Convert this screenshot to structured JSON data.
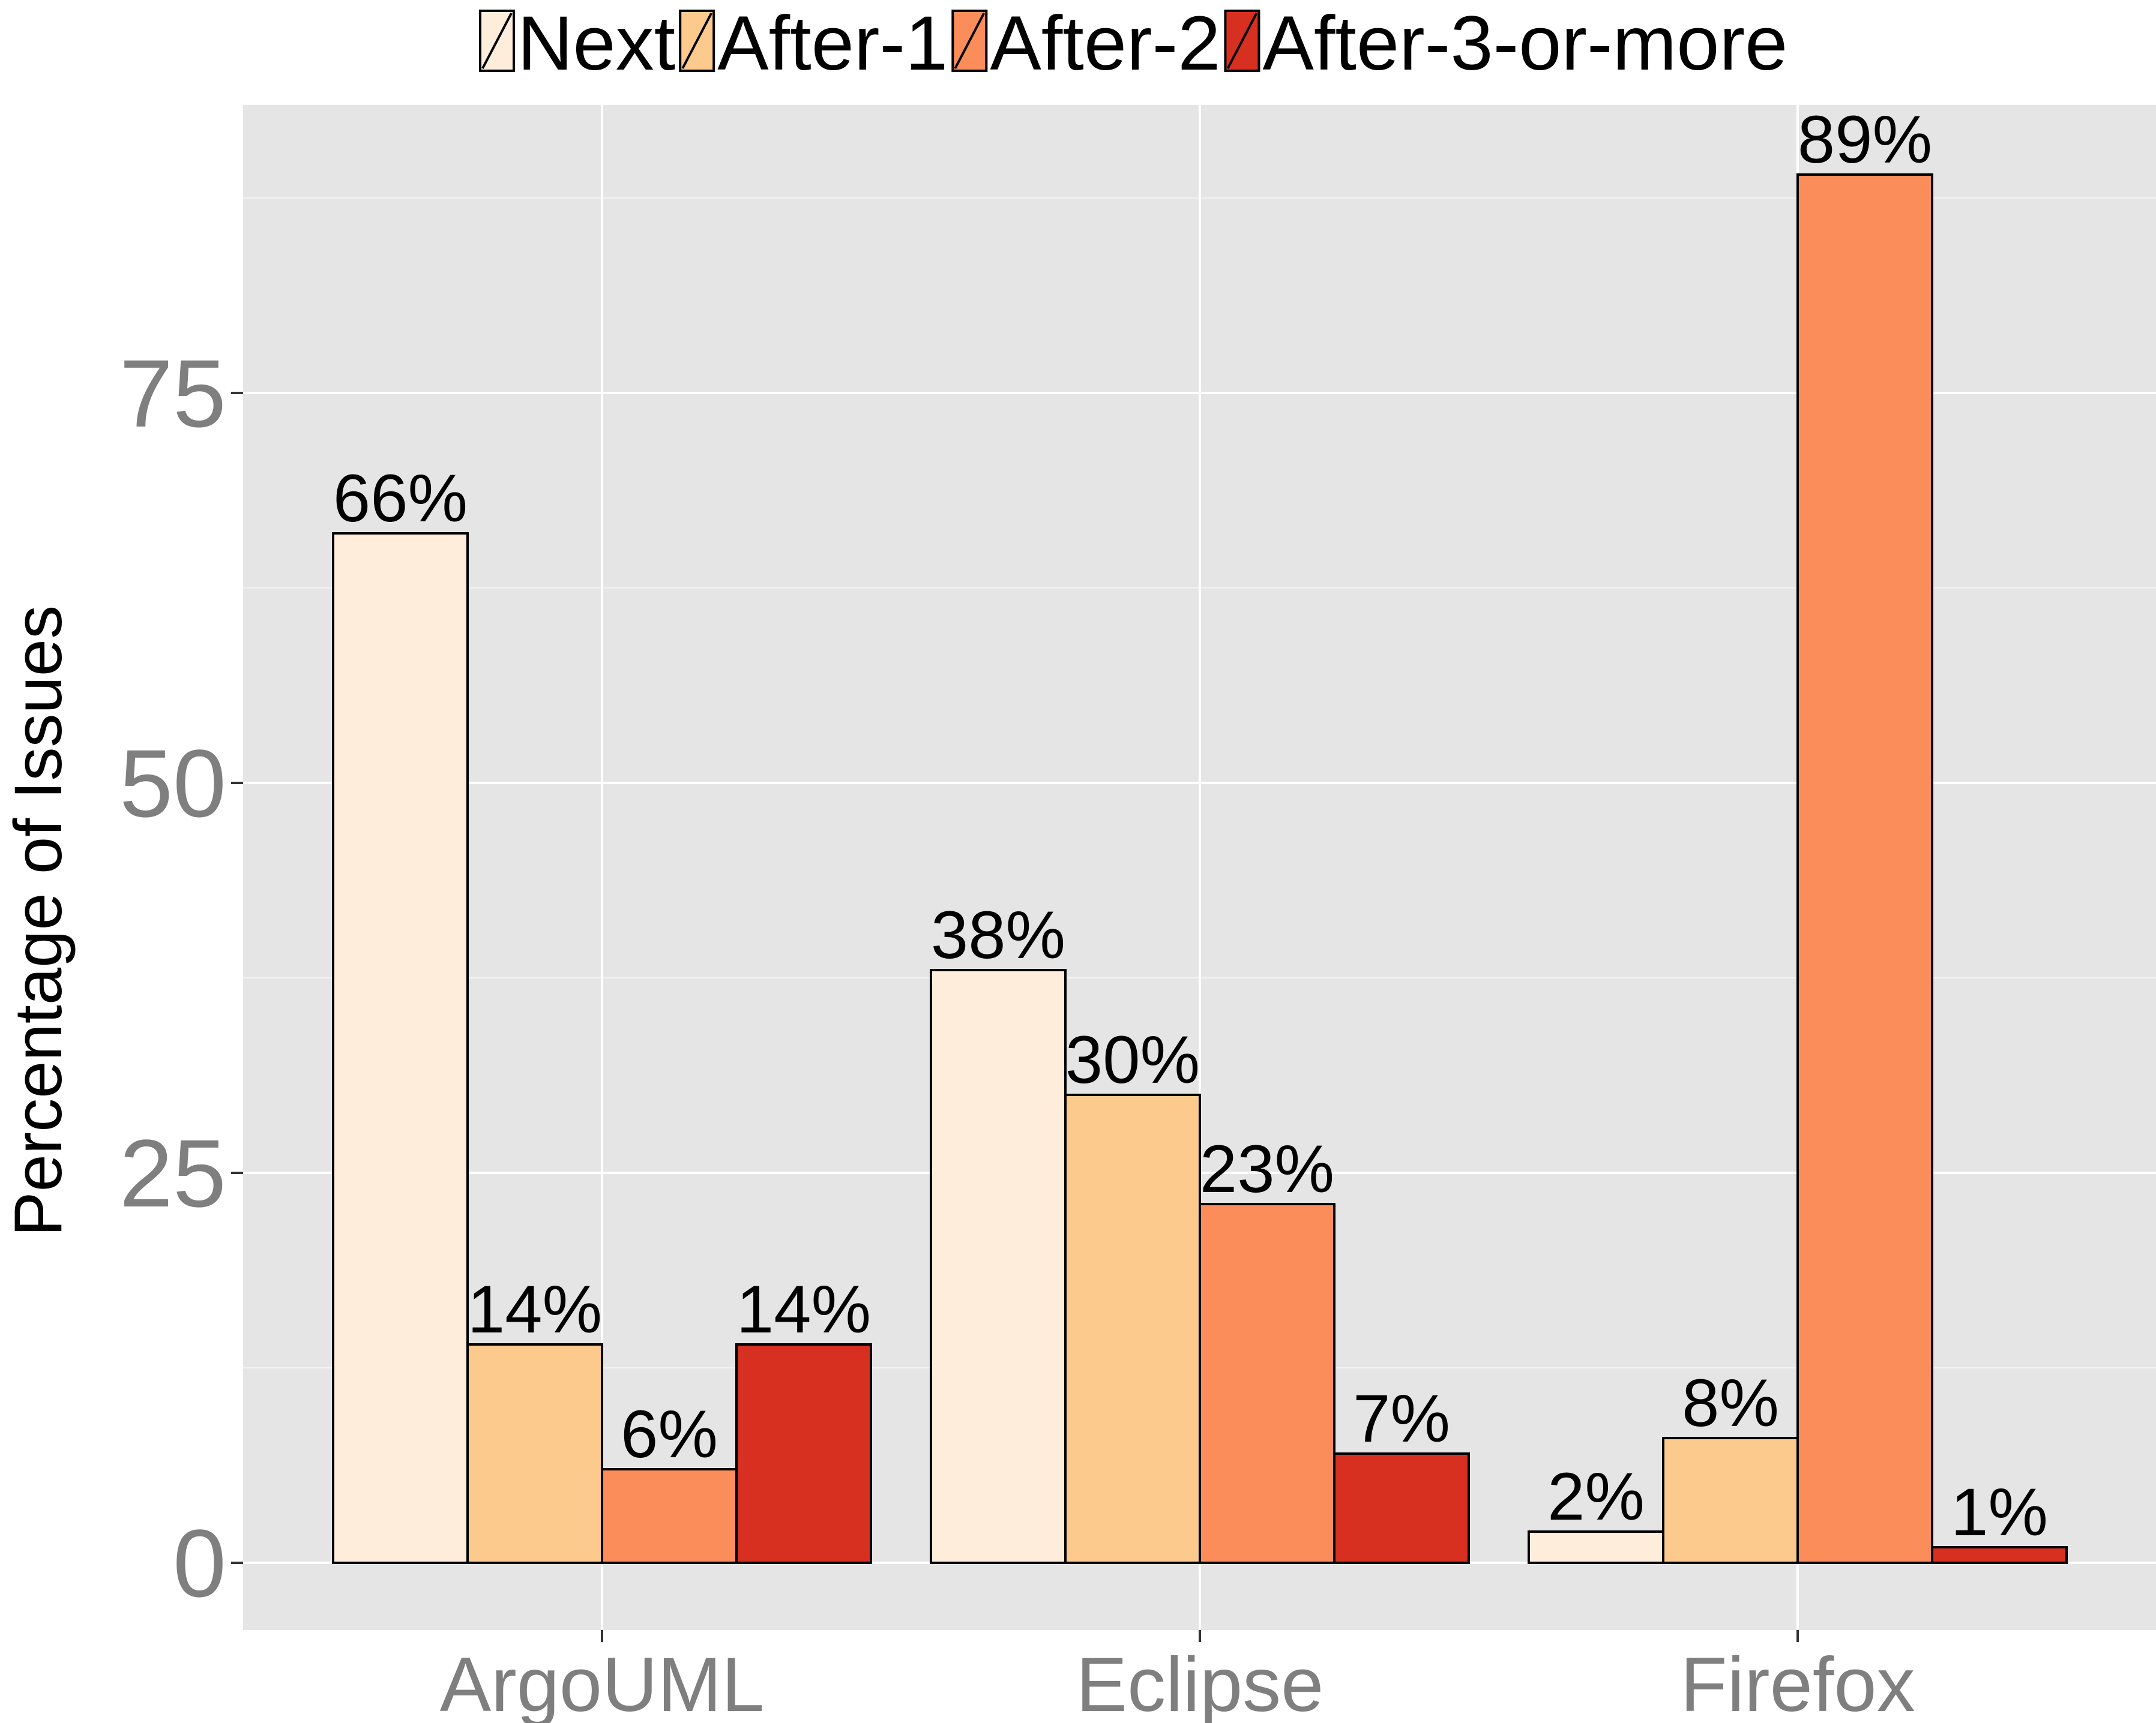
{
  "chart_data": {
    "type": "bar",
    "title": "",
    "xlabel": "",
    "ylabel": "Percentage of Issues",
    "ylim": [
      -8.6,
      93.1
    ],
    "yticks": [
      0,
      25,
      50,
      75
    ],
    "ytick_labels": [
      "0",
      "25",
      "50",
      "75"
    ],
    "grid": true,
    "legend_position": "top",
    "categories": [
      "ArgoUML",
      "Eclipse",
      "Firefox"
    ],
    "series": [
      {
        "name": "Next",
        "color": "#FEEDDA",
        "values": [
          66,
          38,
          2
        ],
        "labels": [
          "66%",
          "38%",
          "2%"
        ]
      },
      {
        "name": "After-1",
        "color": "#FCCA8C",
        "values": [
          14,
          30,
          8
        ],
        "labels": [
          "14%",
          "30%",
          "8%"
        ]
      },
      {
        "name": "After-2",
        "color": "#FB8D5A",
        "values": [
          6,
          23,
          89
        ],
        "labels": [
          "6%",
          "23%",
          "89%"
        ]
      },
      {
        "name": "After-3-or-more",
        "color": "#D73020",
        "values": [
          14,
          7,
          1
        ],
        "labels": [
          "14%",
          "7%",
          "1%"
        ]
      }
    ]
  }
}
